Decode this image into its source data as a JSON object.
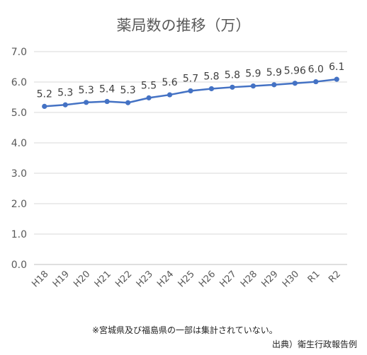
{
  "chart_data": {
    "type": "line",
    "title": "薬局数の推移（万）",
    "categories": [
      "H18",
      "H19",
      "H20",
      "H21",
      "H22",
      "H23",
      "H24",
      "H25",
      "H26",
      "H27",
      "H28",
      "H29",
      "H30",
      "R1",
      "R2"
    ],
    "series": [
      {
        "values": [
          5.2,
          5.25,
          5.33,
          5.36,
          5.32,
          5.48,
          5.58,
          5.71,
          5.78,
          5.83,
          5.87,
          5.91,
          5.96,
          6.01,
          6.09
        ],
        "labels": [
          "5.2",
          "5.3",
          "5.3",
          "5.4",
          "5.3",
          "5.5",
          "5.6",
          "5.7",
          "5.8",
          "5.8",
          "5.9",
          "5.9",
          "5.96",
          "6.0",
          "6.1"
        ]
      }
    ],
    "y_ticks": [
      "0.0",
      "1.0",
      "2.0",
      "3.0",
      "4.0",
      "5.0",
      "6.0",
      "7.0"
    ],
    "ylim": [
      0,
      7
    ],
    "grid": true,
    "legend": "none",
    "line_color": "#4472c4"
  },
  "footer": {
    "note": "※宮城県及び福島県の一部は集計されていない。",
    "source": "出典）衛生行政報告例"
  }
}
